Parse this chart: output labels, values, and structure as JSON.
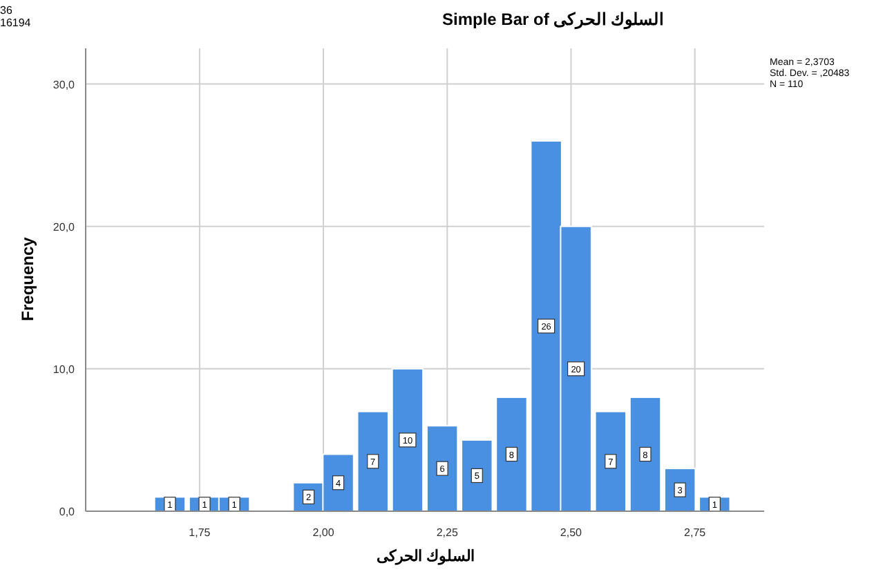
{
  "chart_data": {
    "type": "bar",
    "title": "Simple Bar of السلوك الحركى",
    "xlabel": "السلوك الحركى",
    "ylabel": "Frequency",
    "x": [
      1.69,
      1.76,
      1.82,
      1.97,
      2.03,
      2.1,
      2.17,
      2.24,
      2.31,
      2.38,
      2.45,
      2.51,
      2.58,
      2.65,
      2.72,
      2.79
    ],
    "values": [
      1,
      1,
      1,
      2,
      4,
      7,
      10,
      6,
      5,
      8,
      26,
      20,
      7,
      8,
      3,
      1
    ],
    "color": "#4a90e2",
    "data_labels": true,
    "grid": true,
    "xlim": [
      1.52,
      2.89
    ],
    "ylim": [
      0,
      32.5
    ],
    "xticks": [
      {
        "value": 1.75,
        "label": "1,75"
      },
      {
        "value": 2.0,
        "label": "2,00"
      },
      {
        "value": 2.25,
        "label": "2,25"
      },
      {
        "value": 2.5,
        "label": "2,50"
      },
      {
        "value": 2.75,
        "label": "2,75"
      }
    ],
    "yticks": [
      {
        "value": 0,
        "label": "0,0"
      },
      {
        "value": 10,
        "label": "10,0"
      },
      {
        "value": 20,
        "label": "20,0"
      },
      {
        "value": 30,
        "label": "30,0"
      }
    ],
    "annotations": [
      "36",
      "16194",
      "Mean = 2,3703",
      "Std. Dev. = ,20483",
      "N = 110"
    ]
  }
}
